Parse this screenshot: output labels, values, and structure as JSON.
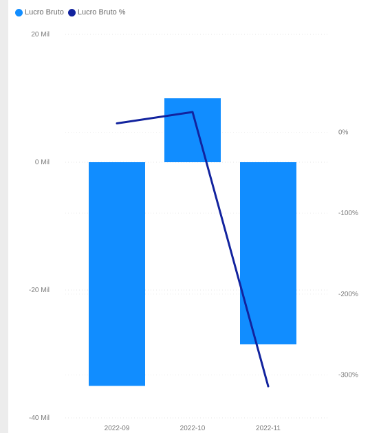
{
  "chart_data": {
    "type": "bar",
    "categories": [
      "2022-09",
      "2022-10",
      "2022-11"
    ],
    "series": [
      {
        "name": "Lucro Bruto",
        "type": "bar",
        "axis": "left",
        "color": "#118dff",
        "values": [
          -35,
          10,
          -28.5
        ]
      },
      {
        "name": "Lucro Bruto %",
        "type": "line",
        "axis": "right",
        "color": "#12239e",
        "values": [
          11,
          25,
          -314
        ]
      }
    ],
    "y_left": {
      "ylim": [
        -40,
        20
      ],
      "ticks": [
        20,
        0,
        -20,
        -40
      ],
      "tick_labels": [
        "20 Mil",
        "0 Mil",
        "-20 Mil",
        "-40 Mil"
      ]
    },
    "y_right": {
      "ylim": [
        -353,
        121
      ],
      "ticks": [
        0,
        -100,
        -200,
        -300
      ],
      "tick_labels": [
        "0%",
        "-100%",
        "-200%",
        "-300%"
      ]
    },
    "grid": true,
    "legend_position": "top-left"
  }
}
